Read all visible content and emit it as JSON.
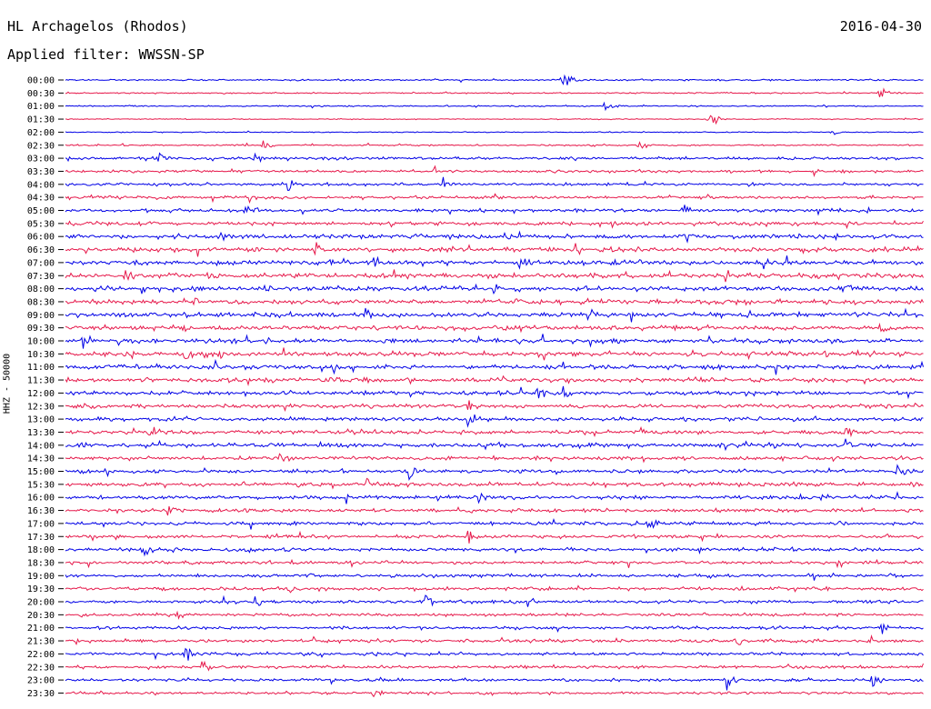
{
  "header": {
    "station": "HL Archagelos (Rhodos)",
    "date": "2016-04-30",
    "filter": "Applied filter: WWSSN-SP",
    "channel_label": "HHZ - 50000"
  },
  "colors": {
    "odd": "#0000e6",
    "even": "#e6194b",
    "axis": "#000000"
  },
  "chart_data": {
    "type": "line",
    "title": "HL Archagelos (Rhodos)",
    "subtitle": "Applied filter: WWSSN-SP",
    "ylabel": "HHZ - 50000",
    "xlabel": "",
    "grid": false,
    "trace_labels": [
      "00:00",
      "00:30",
      "01:00",
      "01:30",
      "02:00",
      "02:30",
      "03:00",
      "03:30",
      "04:00",
      "04:30",
      "05:00",
      "05:30",
      "06:00",
      "06:30",
      "07:00",
      "07:30",
      "08:00",
      "08:30",
      "09:00",
      "09:30",
      "10:00",
      "10:30",
      "11:00",
      "11:30",
      "12:00",
      "12:30",
      "13:00",
      "13:30",
      "14:00",
      "14:30",
      "15:00",
      "15:30",
      "16:00",
      "16:30",
      "17:00",
      "17:30",
      "18:00",
      "18:30",
      "19:00",
      "19:30",
      "20:00",
      "20:30",
      "21:00",
      "21:30",
      "22:00",
      "22:30",
      "23:00",
      "23:30"
    ],
    "trace_noise_level": [
      0.1,
      0.08,
      0.08,
      0.06,
      0.06,
      0.1,
      0.18,
      0.16,
      0.16,
      0.18,
      0.2,
      0.22,
      0.28,
      0.28,
      0.3,
      0.3,
      0.3,
      0.28,
      0.3,
      0.28,
      0.28,
      0.28,
      0.28,
      0.26,
      0.26,
      0.24,
      0.24,
      0.24,
      0.26,
      0.24,
      0.24,
      0.24,
      0.24,
      0.22,
      0.22,
      0.22,
      0.22,
      0.2,
      0.2,
      0.2,
      0.2,
      0.18,
      0.18,
      0.2,
      0.18,
      0.18,
      0.18,
      0.16
    ],
    "events": [
      {
        "trace": 0,
        "position": 0.58,
        "amplitude": 2.2
      },
      {
        "trace": 1,
        "position": 0.95,
        "amplitude": 1.2
      },
      {
        "trace": 2,
        "position": 0.63,
        "amplitude": 0.8
      },
      {
        "trace": 3,
        "position": 0.75,
        "amplitude": 1.4
      },
      {
        "trace": 4,
        "position": 0.89,
        "amplitude": 1.0
      },
      {
        "trace": 5,
        "position": 0.23,
        "amplitude": 0.9
      },
      {
        "trace": 5,
        "position": 0.67,
        "amplitude": 0.8
      },
      {
        "trace": 6,
        "position": 0.11,
        "amplitude": 1.0
      },
      {
        "trace": 6,
        "position": 0.22,
        "amplitude": 1.1
      },
      {
        "trace": 7,
        "position": 0.43,
        "amplitude": 1.0
      },
      {
        "trace": 7,
        "position": 0.87,
        "amplitude": 0.9
      },
      {
        "trace": 8,
        "position": 0.26,
        "amplitude": 1.8
      },
      {
        "trace": 8,
        "position": 0.44,
        "amplitude": 1.3
      },
      {
        "trace": 9,
        "position": 0.21,
        "amplitude": 1.0
      },
      {
        "trace": 10,
        "position": 0.21,
        "amplitude": 1.5
      },
      {
        "trace": 10,
        "position": 0.72,
        "amplitude": 1.3
      },
      {
        "trace": 11,
        "position": 0.09,
        "amplitude": 1.1
      },
      {
        "trace": 11,
        "position": 0.38,
        "amplitude": 0.9
      },
      {
        "trace": 12,
        "position": 0.18,
        "amplitude": 1.2
      },
      {
        "trace": 12,
        "position": 0.72,
        "amplitude": 1.3
      },
      {
        "trace": 13,
        "position": 0.44,
        "amplitude": 1.3
      },
      {
        "trace": 13,
        "position": 0.29,
        "amplitude": 1.0
      },
      {
        "trace": 14,
        "position": 0.36,
        "amplitude": 1.3
      },
      {
        "trace": 14,
        "position": 0.53,
        "amplitude": 1.4
      },
      {
        "trace": 15,
        "position": 0.07,
        "amplitude": 1.3
      },
      {
        "trace": 15,
        "position": 0.77,
        "amplitude": 1.2
      },
      {
        "trace": 16,
        "position": 0.5,
        "amplitude": 1.2
      },
      {
        "trace": 16,
        "position": 0.91,
        "amplitude": 1.0
      },
      {
        "trace": 17,
        "position": 0.15,
        "amplitude": 1.0
      },
      {
        "trace": 17,
        "position": 0.6,
        "amplitude": 1.1
      },
      {
        "trace": 18,
        "position": 0.35,
        "amplitude": 1.6
      },
      {
        "trace": 18,
        "position": 0.61,
        "amplitude": 1.2
      },
      {
        "trace": 19,
        "position": 0.95,
        "amplitude": 1.3
      },
      {
        "trace": 20,
        "position": 0.02,
        "amplitude": 1.5
      },
      {
        "trace": 21,
        "position": 0.14,
        "amplitude": 1.3
      },
      {
        "trace": 21,
        "position": 0.18,
        "amplitude": 1.2
      },
      {
        "trace": 22,
        "position": 0.31,
        "amplitude": 1.0
      },
      {
        "trace": 23,
        "position": 0.62,
        "amplitude": 1.0
      },
      {
        "trace": 24,
        "position": 0.55,
        "amplitude": 1.4
      },
      {
        "trace": 24,
        "position": 0.58,
        "amplitude": 1.2
      },
      {
        "trace": 25,
        "position": 0.47,
        "amplitude": 1.2
      },
      {
        "trace": 26,
        "position": 0.47,
        "amplitude": 1.4
      },
      {
        "trace": 27,
        "position": 0.1,
        "amplitude": 1.3
      },
      {
        "trace": 27,
        "position": 0.91,
        "amplitude": 1.6
      },
      {
        "trace": 28,
        "position": 0.82,
        "amplitude": 1.2
      },
      {
        "trace": 28,
        "position": 0.91,
        "amplitude": 1.3
      },
      {
        "trace": 29,
        "position": 0.25,
        "amplitude": 1.0
      },
      {
        "trace": 30,
        "position": 0.4,
        "amplitude": 1.4
      },
      {
        "trace": 30,
        "position": 0.97,
        "amplitude": 1.3
      },
      {
        "trace": 31,
        "position": 0.35,
        "amplitude": 1.1
      },
      {
        "trace": 32,
        "position": 0.48,
        "amplitude": 1.3
      },
      {
        "trace": 32,
        "position": 0.88,
        "amplitude": 1.1
      },
      {
        "trace": 33,
        "position": 0.12,
        "amplitude": 1.1
      },
      {
        "trace": 34,
        "position": 0.68,
        "amplitude": 1.3
      },
      {
        "trace": 35,
        "position": 0.47,
        "amplitude": 1.1
      },
      {
        "trace": 36,
        "position": 0.09,
        "amplitude": 1.8
      },
      {
        "trace": 37,
        "position": 0.9,
        "amplitude": 1.1
      },
      {
        "trace": 38,
        "position": 0.75,
        "amplitude": 1.4
      },
      {
        "trace": 39,
        "position": 0.26,
        "amplitude": 1.1
      },
      {
        "trace": 40,
        "position": 0.22,
        "amplitude": 1.4
      },
      {
        "trace": 40,
        "position": 0.42,
        "amplitude": 1.3
      },
      {
        "trace": 41,
        "position": 0.13,
        "amplitude": 1.0
      },
      {
        "trace": 42,
        "position": 0.95,
        "amplitude": 1.0
      },
      {
        "trace": 43,
        "position": 0.78,
        "amplitude": 1.2
      },
      {
        "trace": 44,
        "position": 0.14,
        "amplitude": 1.3
      },
      {
        "trace": 44,
        "position": 0.29,
        "amplitude": 1.2
      },
      {
        "trace": 45,
        "position": 0.16,
        "amplitude": 1.1
      },
      {
        "trace": 46,
        "position": 0.77,
        "amplitude": 1.4
      },
      {
        "trace": 46,
        "position": 0.94,
        "amplitude": 1.3
      },
      {
        "trace": 47,
        "position": 0.36,
        "amplitude": 1.0
      }
    ]
  }
}
